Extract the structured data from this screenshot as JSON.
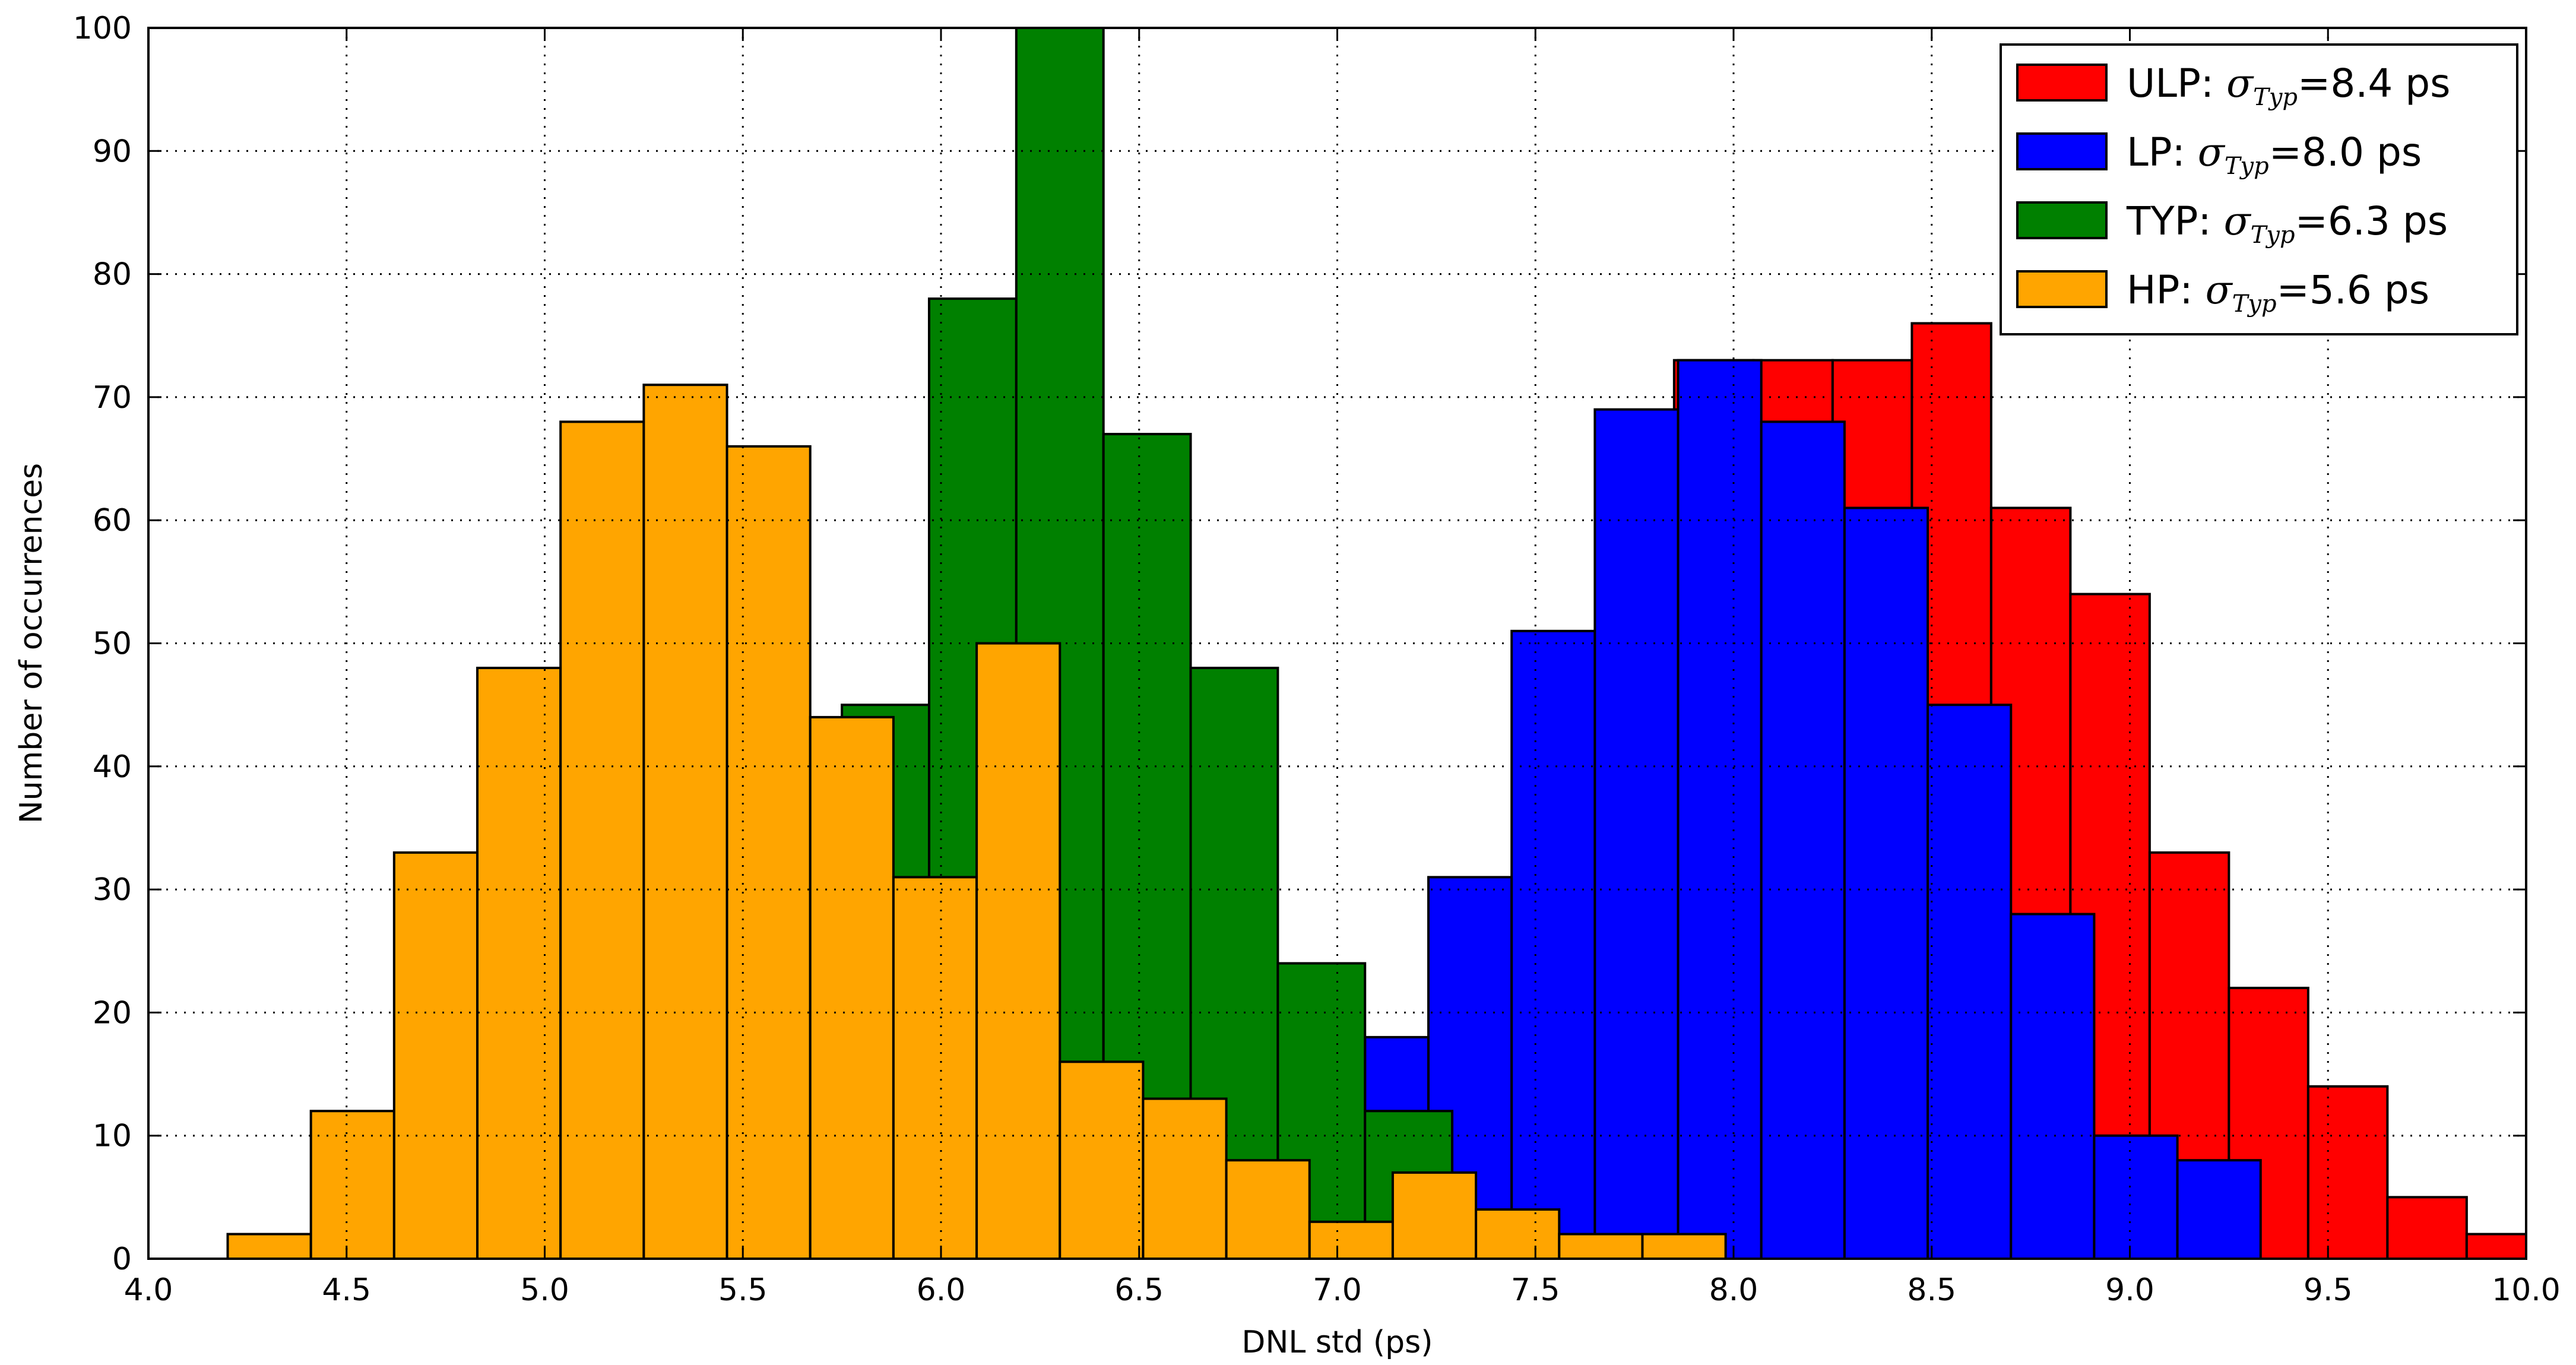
{
  "chart_data": {
    "type": "bar",
    "xlabel": "DNL std (ps)",
    "ylabel": "Number of occurrences",
    "xlim": [
      4.0,
      10.0
    ],
    "ylim": [
      0,
      100
    ],
    "xticks": [
      "4.0",
      "4.5",
      "5.0",
      "5.5",
      "6.0",
      "6.5",
      "7.0",
      "7.5",
      "8.0",
      "8.5",
      "9.0",
      "9.5",
      "10.0"
    ],
    "yticks": [
      "0",
      "10",
      "20",
      "30",
      "40",
      "50",
      "60",
      "70",
      "80",
      "90",
      "100"
    ],
    "grid": true,
    "legend_position": "top-right",
    "series": [
      {
        "name": "ULP",
        "legend_prefix": "ULP: ",
        "legend_sigma": "σ",
        "legend_sub": "Typ",
        "legend_suffix": "=8.4 ps",
        "color": "#ff0000",
        "bins": [
          {
            "x0": 7.85,
            "x1": 8.05,
            "value": 73
          },
          {
            "x0": 8.05,
            "x1": 8.25,
            "value": 73
          },
          {
            "x0": 8.25,
            "x1": 8.45,
            "value": 73
          },
          {
            "x0": 8.45,
            "x1": 8.65,
            "value": 76
          },
          {
            "x0": 8.65,
            "x1": 8.85,
            "value": 61
          },
          {
            "x0": 8.85,
            "x1": 9.05,
            "value": 54
          },
          {
            "x0": 9.05,
            "x1": 9.25,
            "value": 33
          },
          {
            "x0": 9.25,
            "x1": 9.45,
            "value": 22
          },
          {
            "x0": 9.45,
            "x1": 9.65,
            "value": 14
          },
          {
            "x0": 9.65,
            "x1": 9.85,
            "value": 5
          },
          {
            "x0": 9.85,
            "x1": 10.05,
            "value": 2
          }
        ]
      },
      {
        "name": "LP",
        "legend_prefix": "LP: ",
        "legend_sigma": "σ",
        "legend_sub": "Typ",
        "legend_suffix": "=8.0 ps",
        "color": "#0000ff",
        "bins": [
          {
            "x0": 7.07,
            "x1": 7.23,
            "value": 18
          },
          {
            "x0": 7.23,
            "x1": 7.44,
            "value": 31
          },
          {
            "x0": 7.44,
            "x1": 7.65,
            "value": 51
          },
          {
            "x0": 7.65,
            "x1": 7.86,
            "value": 69
          },
          {
            "x0": 7.86,
            "x1": 8.07,
            "value": 73
          },
          {
            "x0": 8.07,
            "x1": 8.28,
            "value": 68
          },
          {
            "x0": 8.28,
            "x1": 8.49,
            "value": 61
          },
          {
            "x0": 8.49,
            "x1": 8.7,
            "value": 45
          },
          {
            "x0": 8.7,
            "x1": 8.91,
            "value": 28
          },
          {
            "x0": 8.91,
            "x1": 9.12,
            "value": 10
          },
          {
            "x0": 9.12,
            "x1": 9.33,
            "value": 8
          }
        ]
      },
      {
        "name": "TYP",
        "legend_prefix": "TYP: ",
        "legend_sigma": "σ",
        "legend_sub": "Typ",
        "legend_suffix": "=6.3 ps",
        "color": "#008000",
        "bins": [
          {
            "x0": 5.75,
            "x1": 5.97,
            "value": 45
          },
          {
            "x0": 5.97,
            "x1": 6.19,
            "value": 78
          },
          {
            "x0": 6.19,
            "x1": 6.41,
            "value": 100
          },
          {
            "x0": 6.41,
            "x1": 6.63,
            "value": 67
          },
          {
            "x0": 6.63,
            "x1": 6.85,
            "value": 48
          },
          {
            "x0": 6.85,
            "x1": 7.07,
            "value": 24
          },
          {
            "x0": 7.07,
            "x1": 7.29,
            "value": 12
          }
        ]
      },
      {
        "name": "HP",
        "legend_prefix": "HP: ",
        "legend_sigma": "σ",
        "legend_sub": "Typ",
        "legend_suffix": "=5.6 ps",
        "color": "#ffa500",
        "bins": [
          {
            "x0": 4.2,
            "x1": 4.41,
            "value": 2
          },
          {
            "x0": 4.41,
            "x1": 4.62,
            "value": 12
          },
          {
            "x0": 4.62,
            "x1": 4.83,
            "value": 33
          },
          {
            "x0": 4.83,
            "x1": 5.04,
            "value": 48
          },
          {
            "x0": 5.04,
            "x1": 5.25,
            "value": 68
          },
          {
            "x0": 5.25,
            "x1": 5.46,
            "value": 71
          },
          {
            "x0": 5.46,
            "x1": 5.67,
            "value": 66
          },
          {
            "x0": 5.67,
            "x1": 5.88,
            "value": 44
          },
          {
            "x0": 5.88,
            "x1": 6.09,
            "value": 31
          },
          {
            "x0": 6.09,
            "x1": 6.3,
            "value": 50
          },
          {
            "x0": 6.3,
            "x1": 6.51,
            "value": 16
          },
          {
            "x0": 6.51,
            "x1": 6.72,
            "value": 13
          },
          {
            "x0": 6.72,
            "x1": 6.93,
            "value": 8
          },
          {
            "x0": 6.93,
            "x1": 7.14,
            "value": 3
          },
          {
            "x0": 7.14,
            "x1": 7.35,
            "value": 7
          },
          {
            "x0": 7.35,
            "x1": 7.56,
            "value": 4
          },
          {
            "x0": 7.56,
            "x1": 7.77,
            "value": 2
          },
          {
            "x0": 7.77,
            "x1": 7.98,
            "value": 2
          }
        ]
      }
    ]
  }
}
